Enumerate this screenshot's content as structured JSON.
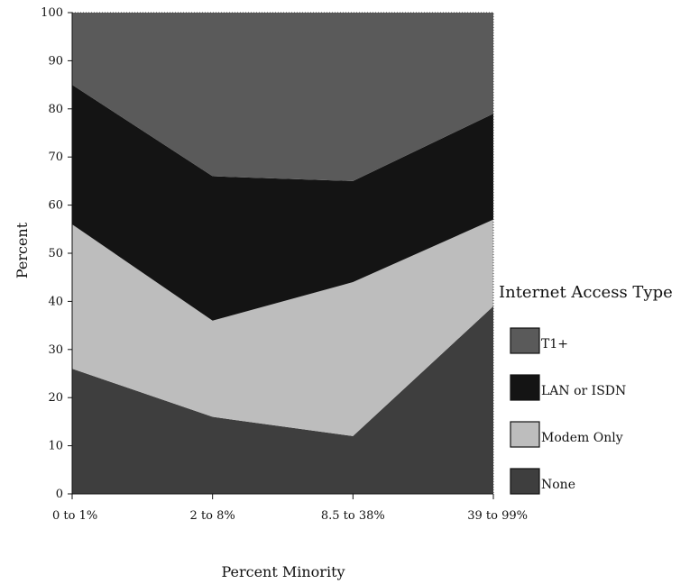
{
  "chart_data": {
    "type": "area",
    "stacked": true,
    "categories": [
      "0 to 1%",
      "2 to 8%",
      "8.5 to 38%",
      "39 to 99%"
    ],
    "xlabel": "Percent Minority",
    "ylabel": "Percent",
    "ylim": [
      0,
      100
    ],
    "yticks": [
      0,
      10,
      20,
      30,
      40,
      50,
      60,
      70,
      80,
      90,
      100
    ],
    "legend_title": "Internet Access Type",
    "legend_position": "right",
    "series": [
      {
        "name": "None",
        "values": [
          26,
          16,
          12,
          39
        ],
        "color": "#3e3e3e"
      },
      {
        "name": "Modem Only",
        "values": [
          30,
          20,
          32,
          18
        ],
        "color": "#bdbdbd"
      },
      {
        "name": "LAN or ISDN",
        "values": [
          29,
          30,
          21,
          22
        ],
        "color": "#141414"
      },
      {
        "name": "T1+",
        "values": [
          15,
          34,
          35,
          21
        ],
        "color": "#5a5a5a"
      }
    ],
    "legend_order": [
      "T1+",
      "LAN or ISDN",
      "Modem Only",
      "None"
    ]
  }
}
